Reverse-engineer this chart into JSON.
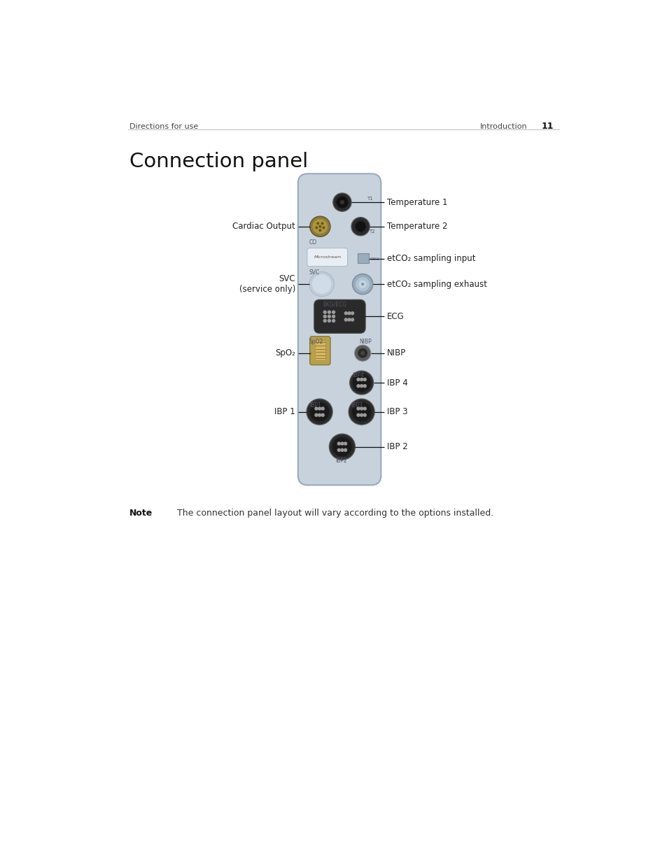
{
  "bg_color": "#ffffff",
  "header_left": "Directions for use",
  "header_right": "Introduction",
  "header_page": "11",
  "title": "Connection panel",
  "note_bold": "Note",
  "note_text": "The connection panel layout will vary according to the options installed.",
  "panel_color": "#c8d4de",
  "panel_edge_color": "#9aaabb",
  "right_labels": [
    [
      "Temperature 1",
      0.793
    ],
    [
      "Temperature 2",
      0.758
    ],
    [
      "etCO₂ sampling input",
      0.706
    ],
    [
      "etCO₂ sampling exhaust",
      0.668
    ],
    [
      "ECG",
      0.612
    ],
    [
      "NIBP",
      0.555
    ],
    [
      "IBP 4",
      0.515
    ],
    [
      "IBP 3",
      0.464
    ],
    [
      "IBP 2",
      0.412
    ]
  ],
  "left_labels": [
    [
      "Cardiac Output",
      0.758
    ],
    [
      "SVC\n(service only)",
      0.668
    ],
    [
      "SpO₂",
      0.541
    ],
    [
      "IBP 1",
      0.464
    ]
  ]
}
